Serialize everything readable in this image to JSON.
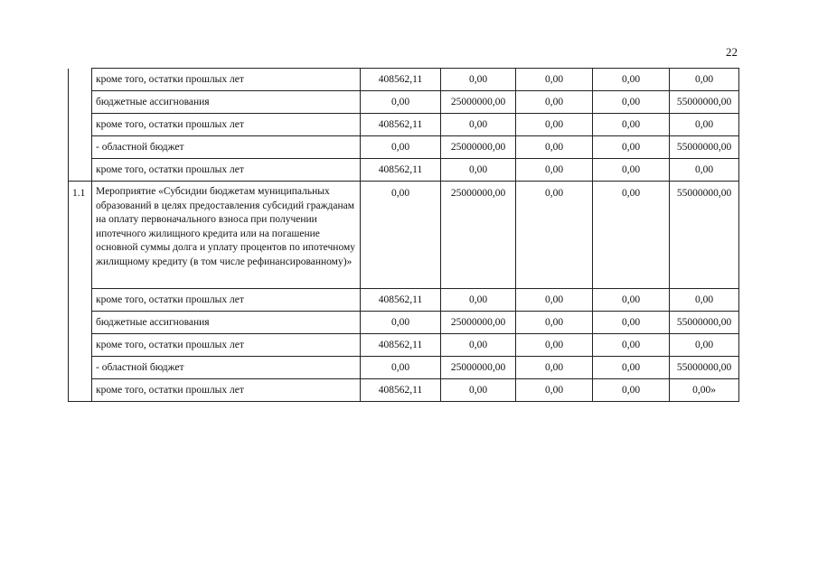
{
  "page_number": "22",
  "sections": [
    {
      "index": "",
      "rows": [
        {
          "label": "кроме того, остатки прошлых лет",
          "values": [
            "408562,11",
            "0,00",
            "0,00",
            "0,00",
            "0,00"
          ]
        },
        {
          "label": "бюджетные ассигнования",
          "values": [
            "0,00",
            "25000000,00",
            "0,00",
            "0,00",
            "55000000,00"
          ]
        },
        {
          "label": "кроме того, остатки прошлых лет",
          "values": [
            "408562,11",
            "0,00",
            "0,00",
            "0,00",
            "0,00"
          ]
        },
        {
          "label": "- областной бюджет",
          "values": [
            "0,00",
            "25000000,00",
            "0,00",
            "0,00",
            "55000000,00"
          ]
        },
        {
          "label": "кроме того, остатки прошлых лет",
          "values": [
            "408562,11",
            "0,00",
            "0,00",
            "0,00",
            "0,00"
          ]
        }
      ]
    },
    {
      "index": "1.1",
      "rows": [
        {
          "label": "Мероприятие «Субсидии бюджетам муниципальных образований в целях предоставления субсидий гражданам на оплату первоначального взноса при получении ипотечного жилищного кредита или на погашение основной суммы долга и уплату процентов по ипотечному жилищному кредиту (в том числе рефинансированному)»",
          "values": [
            "0,00",
            "25000000,00",
            "0,00",
            "0,00",
            "55000000,00"
          ]
        },
        {
          "label": "кроме того, остатки прошлых лет",
          "values": [
            "408562,11",
            "0,00",
            "0,00",
            "0,00",
            "0,00"
          ]
        },
        {
          "label": "бюджетные ассигнования",
          "values": [
            "0,00",
            "25000000,00",
            "0,00",
            "0,00",
            "55000000,00"
          ]
        },
        {
          "label": "кроме того, остатки прошлых лет",
          "values": [
            "408562,11",
            "0,00",
            "0,00",
            "0,00",
            "0,00"
          ]
        },
        {
          "label": "- областной бюджет",
          "values": [
            "0,00",
            "25000000,00",
            "0,00",
            "0,00",
            "55000000,00"
          ]
        },
        {
          "label": "кроме того, остатки прошлых лет",
          "values": [
            "408562,11",
            "0,00",
            "0,00",
            "0,00",
            "0,00»"
          ]
        }
      ]
    }
  ]
}
